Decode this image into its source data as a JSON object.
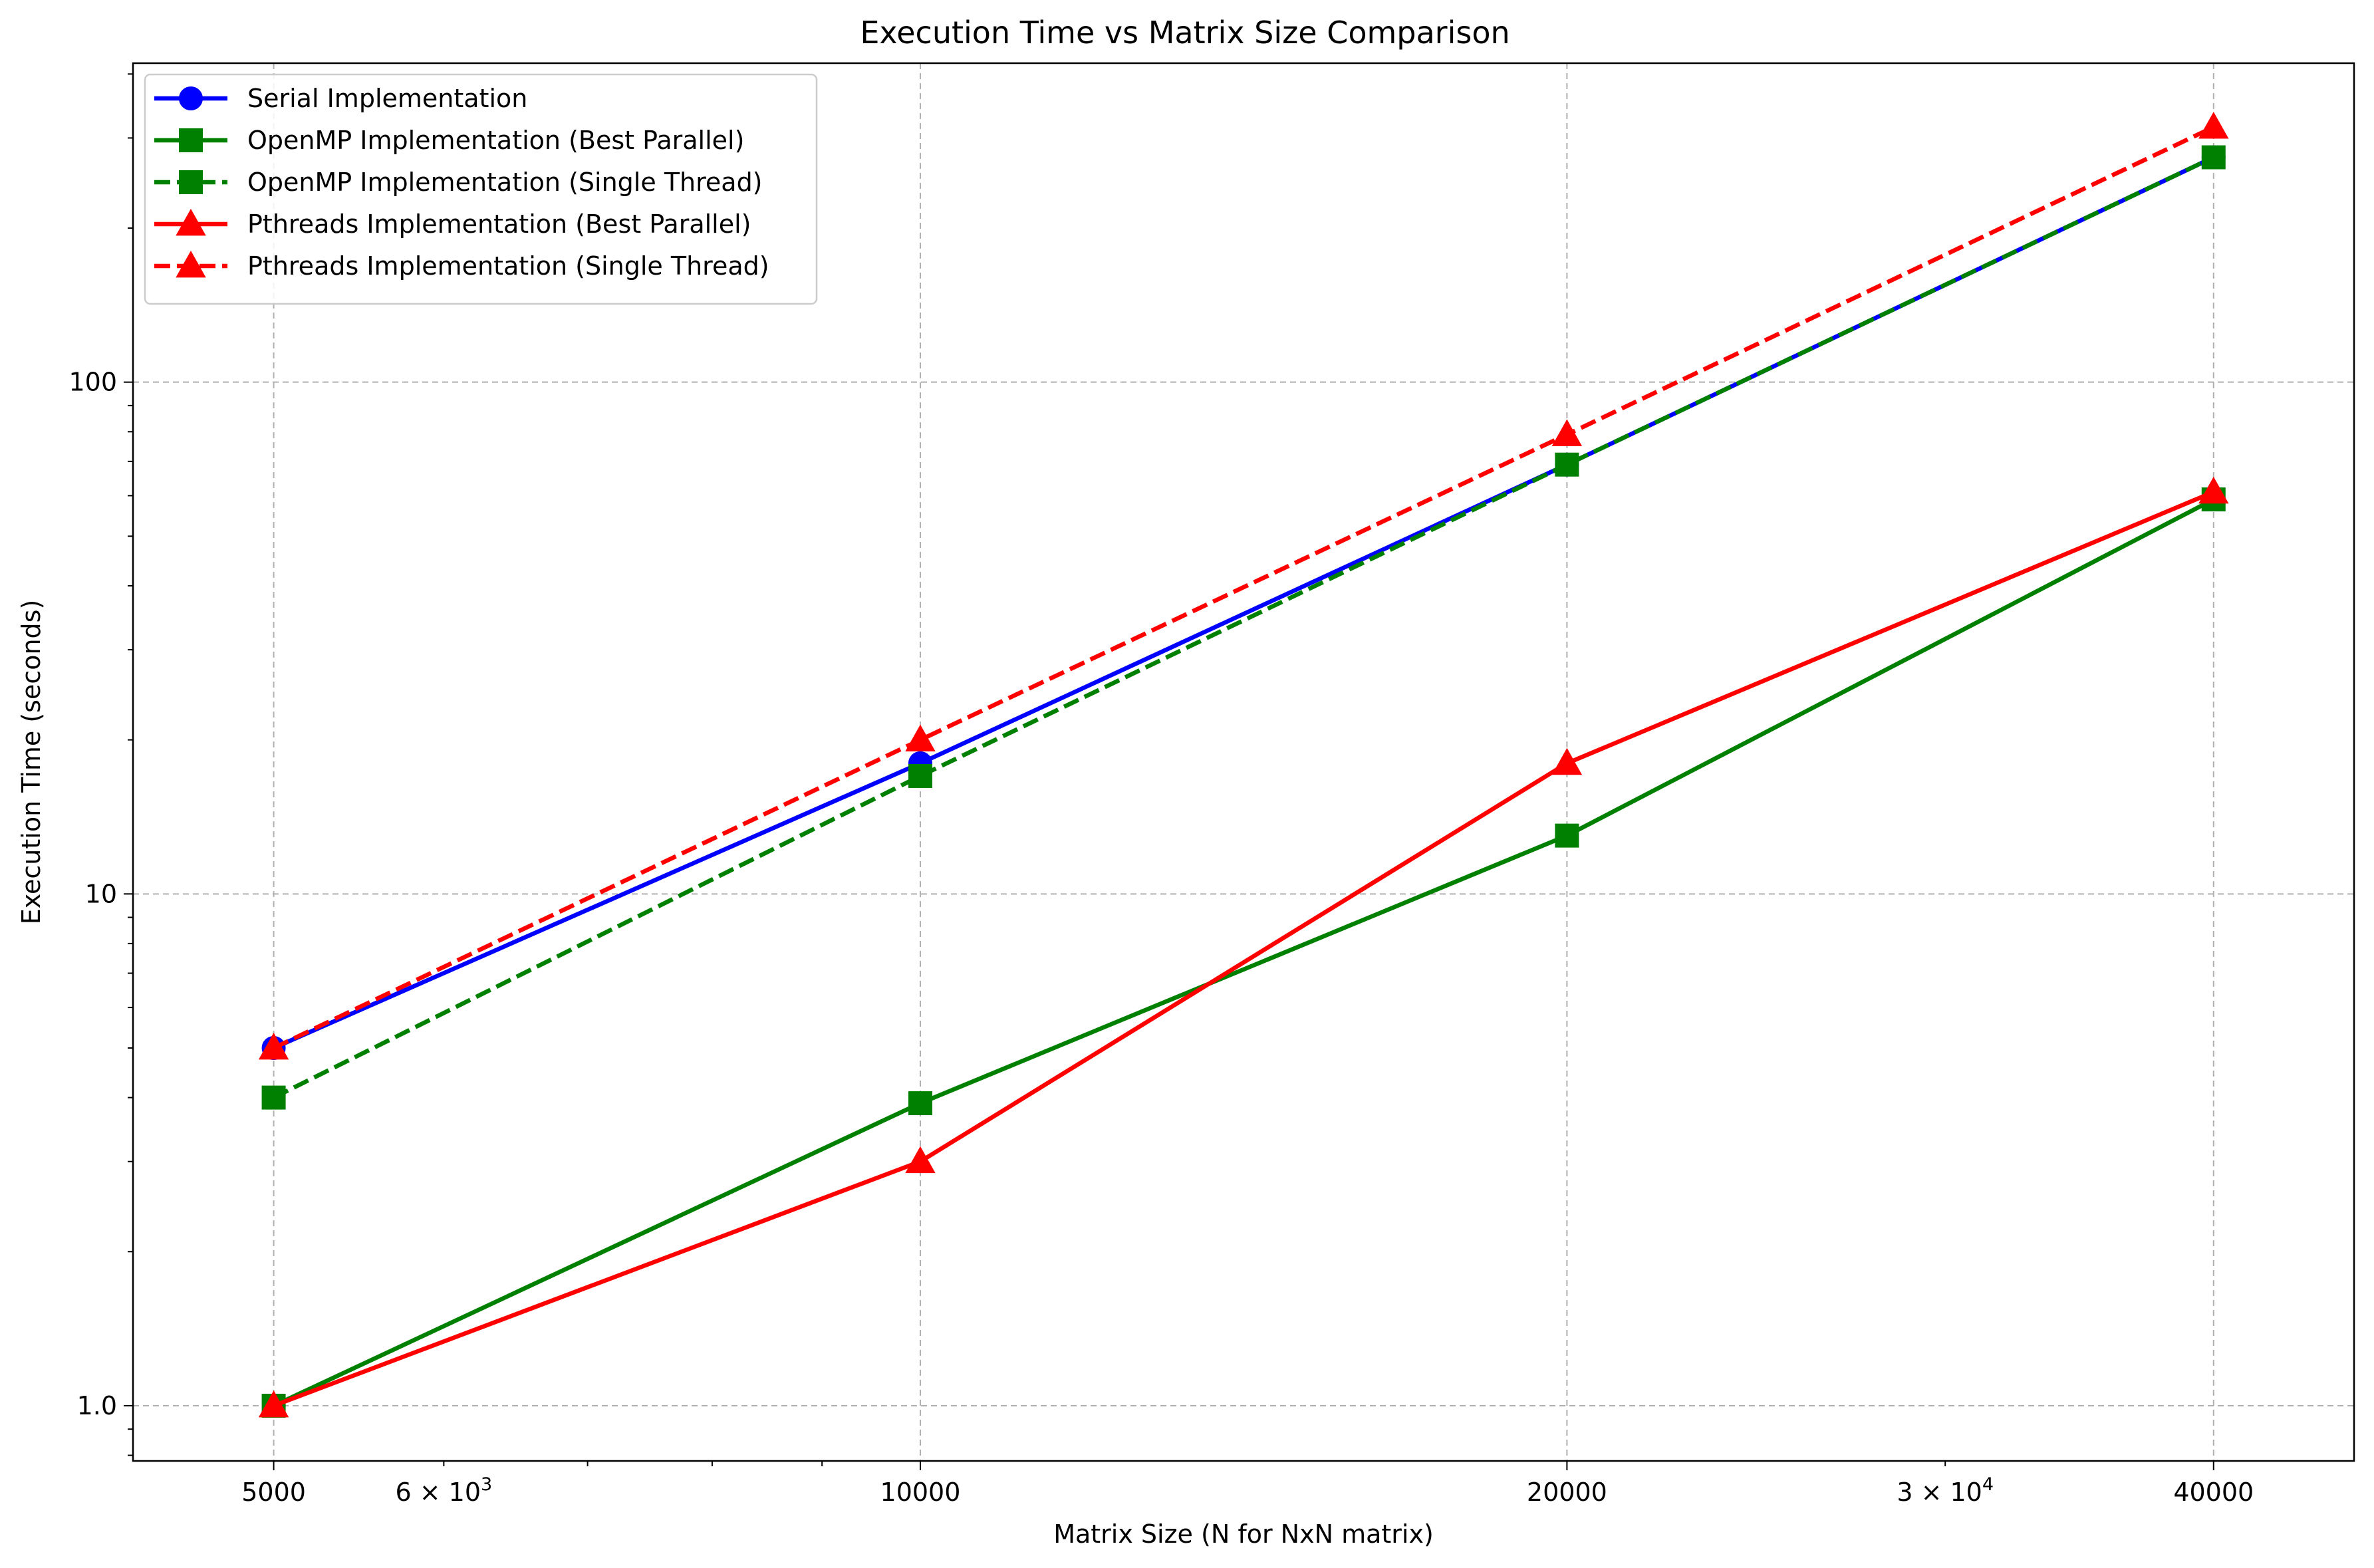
{
  "chart_data": {
    "type": "line",
    "title": "Execution Time vs Matrix Size Comparison",
    "xlabel": "Matrix Size (N for NxN matrix)",
    "ylabel": "Execution Time (seconds)",
    "x": [
      5000,
      10000,
      20000,
      40000
    ],
    "x_scale": "log",
    "y_scale": "log",
    "xlim": [
      4300,
      46500
    ],
    "ylim": [
      0.78,
      420
    ],
    "x_ticks": [
      {
        "value": 5000,
        "label": "5000",
        "sup": ""
      },
      {
        "value": 6000,
        "label": "6 × 10",
        "sup": "3"
      },
      {
        "value": 10000,
        "label": "10000",
        "sup": ""
      },
      {
        "value": 20000,
        "label": "20000",
        "sup": ""
      },
      {
        "value": 30000,
        "label": "3 × 10",
        "sup": "4"
      },
      {
        "value": 40000,
        "label": "40000",
        "sup": ""
      }
    ],
    "x_major_grid": [
      5000,
      10000,
      20000,
      40000
    ],
    "x_minor_ticks": [
      7000,
      8000,
      9000
    ],
    "y_ticks": [
      {
        "value": 1,
        "label": "1.0"
      },
      {
        "value": 10,
        "label": "10"
      },
      {
        "value": 100,
        "label": "100"
      }
    ],
    "y_minor_ticks": [
      0.8,
      0.9,
      2,
      3,
      4,
      5,
      6,
      7,
      8,
      9,
      20,
      30,
      40,
      50,
      60,
      70,
      80,
      90,
      200,
      300,
      400
    ],
    "grid": true,
    "legend_position": "top-left",
    "series": [
      {
        "name": "Serial Implementation",
        "values": [
          5.0,
          18.0,
          69.0,
          275.0
        ],
        "color": "#0000ff",
        "dash": "solid",
        "marker": "circle"
      },
      {
        "name": "OpenMP Implementation (Best Parallel)",
        "values": [
          1.0,
          3.9,
          13.0,
          59.0
        ],
        "color": "#008000",
        "dash": "solid",
        "marker": "square"
      },
      {
        "name": "OpenMP Implementation (Single Thread)",
        "values": [
          4.0,
          17.0,
          69.0,
          275.0
        ],
        "color": "#008000",
        "dash": "dashed",
        "marker": "square"
      },
      {
        "name": "Pthreads Implementation (Best Parallel)",
        "values": [
          1.0,
          3.0,
          18.0,
          61.0
        ],
        "color": "#ff0000",
        "dash": "solid",
        "marker": "triangle"
      },
      {
        "name": "Pthreads Implementation (Single Thread)",
        "values": [
          5.0,
          20.0,
          79.0,
          315.0
        ],
        "color": "#ff0000",
        "dash": "dashed",
        "marker": "triangle"
      }
    ]
  }
}
